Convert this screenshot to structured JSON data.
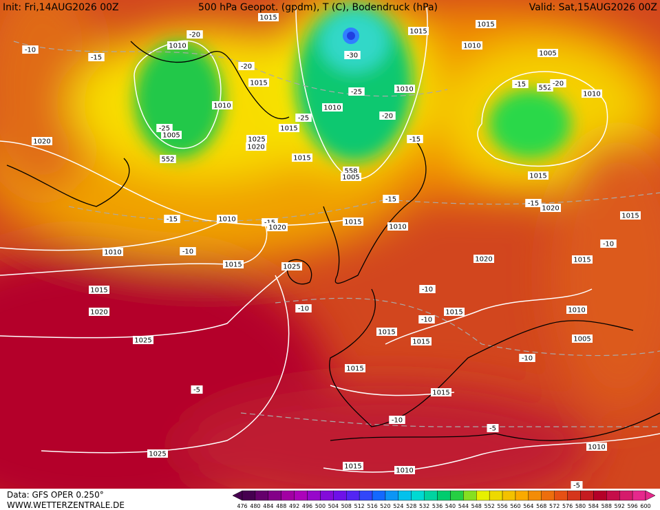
{
  "header": {
    "init": "Init: Fri,14AUG2026 00Z",
    "title": "500 hPa Geopot. (gpdm), T (C), Bodendruck (hPa)",
    "valid": "Valid: Sat,15AUG2026 00Z"
  },
  "footer": {
    "source": "Data: GFS OPER 0.250°",
    "site": "WWW.WETTERZENTRALE.DE"
  },
  "colorbar": {
    "ticks": [
      476,
      480,
      484,
      488,
      492,
      496,
      500,
      504,
      508,
      512,
      516,
      520,
      524,
      528,
      532,
      536,
      540,
      544,
      548,
      552,
      556,
      560,
      564,
      568,
      572,
      576,
      580,
      584,
      588,
      592,
      596,
      600
    ]
  },
  "map": {
    "labels": [
      "1015",
      "1015",
      "1015",
      "1010",
      "1005",
      "1010",
      "-20",
      "-10",
      "-15",
      "-20",
      "-30",
      "1015",
      "-25",
      "1010",
      "-15",
      "552",
      "-20",
      "1010",
      "1010",
      "1010",
      "-20",
      "-25",
      "1005",
      "1015",
      "-25",
      "1025",
      "1020",
      "-15",
      "1020",
      "552",
      "1015",
      "558",
      "1005",
      "1015",
      "-15",
      "-15",
      "1020",
      "1015",
      "-15",
      "1010",
      "-15",
      "1020",
      "1015",
      "1010",
      "1010",
      "-10",
      "-10",
      "1015",
      "1025",
      "1020",
      "1015",
      "-10",
      "1015",
      "1020",
      "-10",
      "-10",
      "1015",
      "1010",
      "1015",
      "1015",
      "1005",
      "1025",
      "-10",
      "1015",
      "-5",
      "1015",
      "-10",
      "-5",
      "1010",
      "1025",
      "1015",
      "1010",
      "-5"
    ]
  }
}
